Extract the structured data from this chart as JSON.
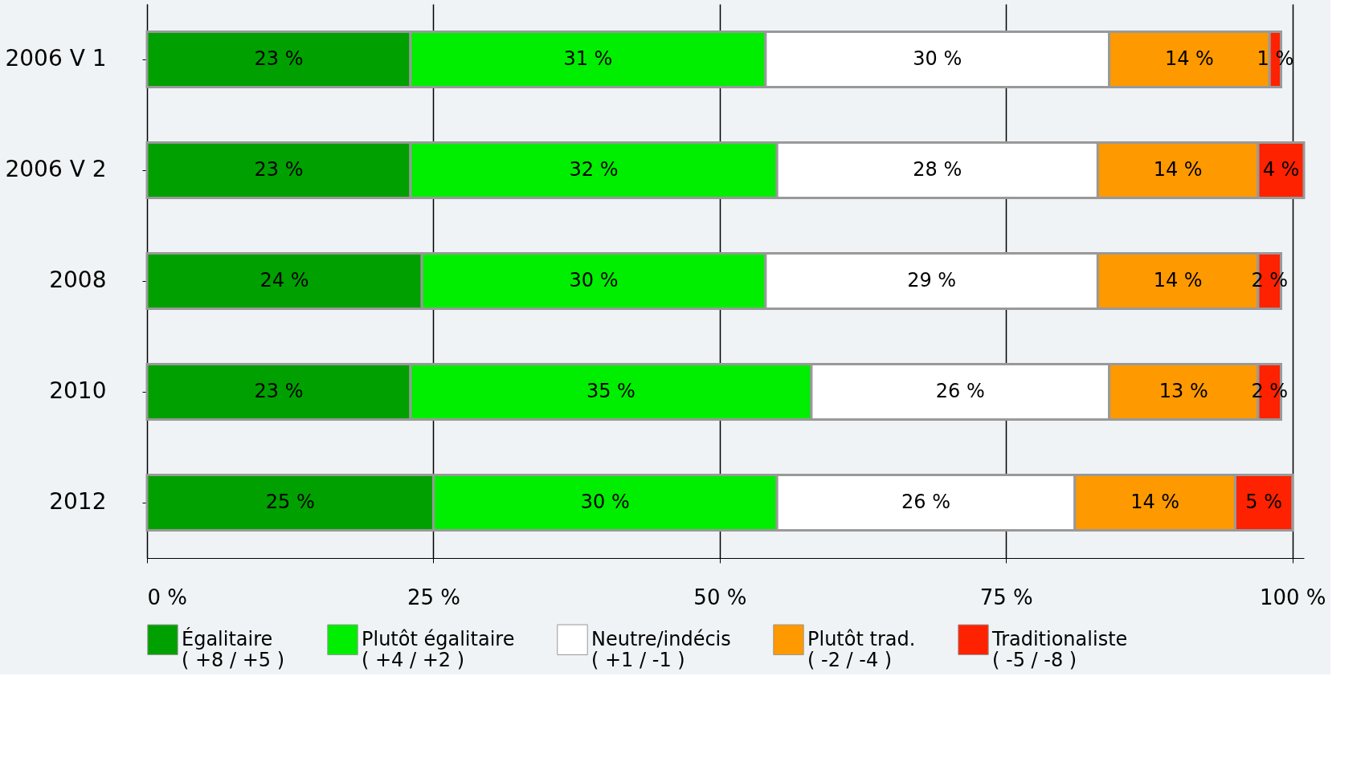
{
  "chart_data": {
    "type": "bar",
    "orientation": "horizontal",
    "stacked": true,
    "categories": [
      "2006 V 1",
      "2006 V 2",
      "2008",
      "2010",
      "2012"
    ],
    "series": [
      {
        "name": "Égalitaire\n( +8 / +5 )",
        "color": "#00a000",
        "values": [
          23,
          23,
          24,
          23,
          25
        ],
        "value_labels": [
          "23 %",
          "23 %",
          "24 %",
          "23 %",
          "25 %"
        ]
      },
      {
        "name": "Plutôt égalitaire\n( +4 /  +2 )",
        "color": "#00ee00",
        "values": [
          31,
          32,
          30,
          35,
          30
        ],
        "value_labels": [
          "31 %",
          "32 %",
          "30 %",
          "35 %",
          "30 %"
        ]
      },
      {
        "name": "Neutre/indécis\n( +1 / -1 )",
        "color": "#ffffff",
        "values": [
          30,
          28,
          29,
          26,
          26
        ],
        "value_labels": [
          "30 %",
          "28 %",
          "29 %",
          "26 %",
          "26 %"
        ]
      },
      {
        "name": "Plutôt trad.\n( -2 / -4 )",
        "color": "#ff9900",
        "values": [
          14,
          14,
          14,
          13,
          14
        ],
        "value_labels": [
          "14 %",
          "14 %",
          "14 %",
          "13 %",
          "14 %"
        ]
      },
      {
        "name": "Traditionaliste\n( -5 / -8 )",
        "color": "#ff2200",
        "values": [
          1,
          4,
          2,
          2,
          5
        ],
        "value_labels": [
          "1 %",
          "4 %",
          "2 %",
          "2 %",
          "5 %"
        ]
      }
    ],
    "xlim": [
      0,
      101
    ],
    "xticks": [
      {
        "value": 0,
        "label": "0 %"
      },
      {
        "value": 25,
        "label": "25 %"
      },
      {
        "value": 50,
        "label": "50 %"
      },
      {
        "value": 75,
        "label": "75 %"
      },
      {
        "value": 100,
        "label": "100 %"
      }
    ],
    "grid": "x",
    "legend": "bottom"
  }
}
